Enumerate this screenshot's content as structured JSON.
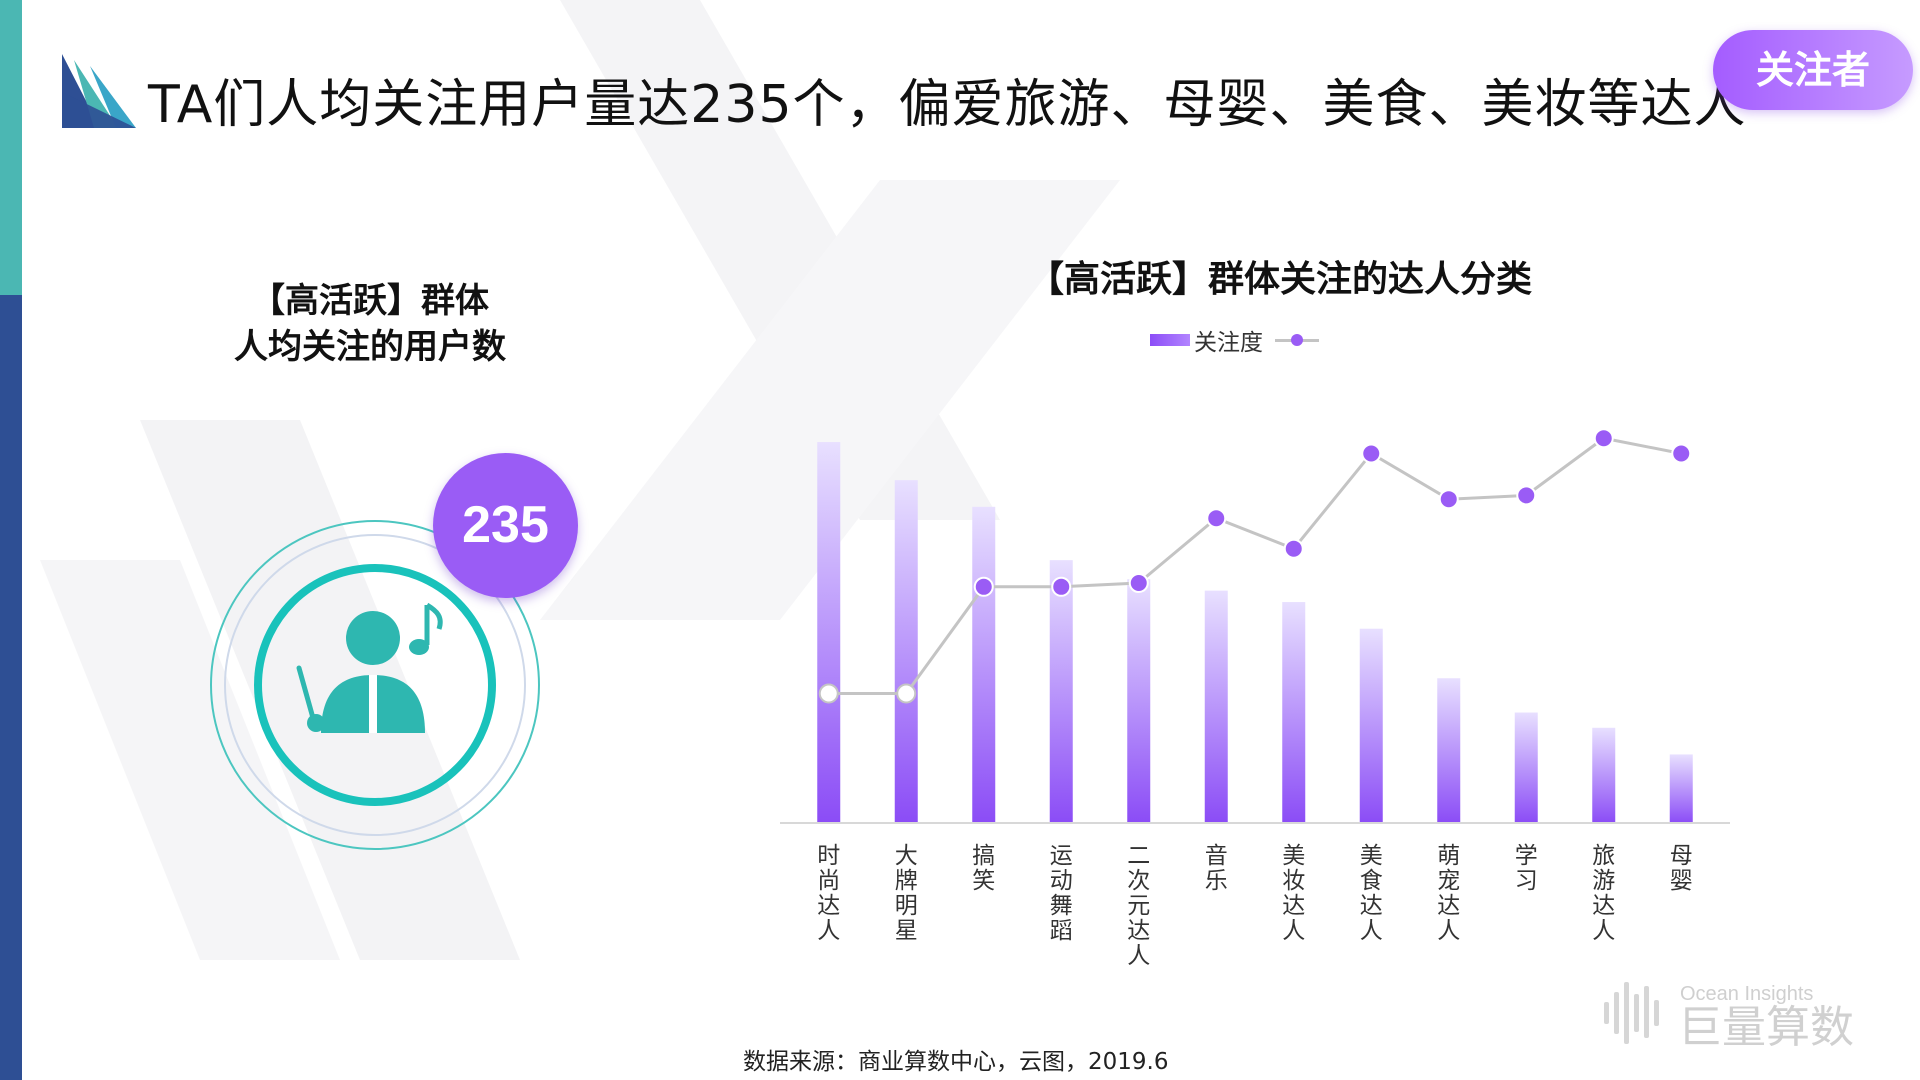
{
  "header": {
    "title": "TA们人均关注用户量达235个，偏爱旅游、母婴、美食、美妆等达人",
    "badge": "关注者"
  },
  "left_panel": {
    "caption_line1": "【高活跃】群体",
    "caption_line2": "人均关注的用户数",
    "value": "235",
    "icon": "conductor-music-icon"
  },
  "chart_data": {
    "type": "bar",
    "title": "【高活跃】群体关注的达人分类",
    "legend": [
      "关注度",
      ""
    ],
    "legend_position": "top",
    "categories": [
      "时尚达人",
      "大牌明星",
      "搞笑",
      "运动舞蹈",
      "二次元达人",
      "音乐",
      "美妆达人",
      "美食达人",
      "萌宠达人",
      "学习",
      "旅游达人",
      "母婴"
    ],
    "series": [
      {
        "name": "关注度",
        "type": "bar",
        "values": [
          100,
          90,
          83,
          69,
          64,
          61,
          58,
          51,
          38,
          29,
          25,
          18
        ]
      },
      {
        "name": "",
        "type": "line",
        "values": [
          34,
          34,
          62,
          62,
          63,
          80,
          72,
          97,
          85,
          86,
          101,
          97
        ]
      }
    ],
    "ylim": [
      0,
      105
    ],
    "grid": false,
    "colors": {
      "bar_top": "#e8e0ff",
      "bar_bottom": "#8b4cf6",
      "line": "#c4c4c4",
      "marker": "#9a5cf5"
    }
  },
  "footer": {
    "source": "数据来源：商业算数中心，云图，2019.6",
    "brand_en": "Ocean Insights",
    "brand_cn": "巨量算数"
  }
}
